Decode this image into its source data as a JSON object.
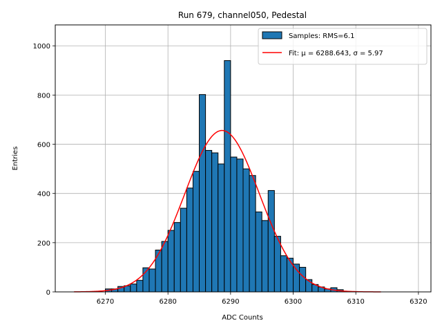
{
  "chart_data": {
    "type": "bar",
    "title": "Run 679, channel050, Pedestal",
    "xlabel": "ADC Counts",
    "ylabel": "Entries",
    "xlim": [
      6262,
      6322
    ],
    "ylim": [
      0,
      1085
    ],
    "xticks": [
      6270,
      6280,
      6290,
      6300,
      6310,
      6320
    ],
    "yticks": [
      0,
      200,
      400,
      600,
      800,
      1000
    ],
    "grid": true,
    "legend_position": "top-right",
    "histogram": {
      "name": "Samples: RMS=6.1",
      "color": "#1f77b4",
      "edge_color": "#000000",
      "bin_width": 1,
      "bin_starts": [
        6270,
        6271,
        6272,
        6273,
        6274,
        6275,
        6276,
        6277,
        6278,
        6279,
        6280,
        6281,
        6282,
        6283,
        6284,
        6285,
        6286,
        6287,
        6288,
        6289,
        6290,
        6291,
        6292,
        6293,
        6294,
        6295,
        6296,
        6297,
        6298,
        6299,
        6300,
        6301,
        6302,
        6303,
        6304,
        6305,
        6306,
        6307
      ],
      "counts": [
        12,
        12,
        22,
        25,
        32,
        47,
        98,
        93,
        170,
        205,
        250,
        282,
        340,
        422,
        490,
        802,
        575,
        565,
        520,
        940,
        548,
        540,
        500,
        473,
        325,
        290,
        412,
        226,
        147,
        137,
        113,
        100,
        50,
        30,
        20,
        12,
        17,
        9
      ]
    },
    "fit": {
      "name": "Fit: μ = 6288.643, σ = 5.97",
      "color": "#ff0000",
      "mu": 6288.643,
      "sigma": 5.97,
      "amplitude": 656,
      "x_range": [
        6265,
        6314
      ]
    }
  }
}
